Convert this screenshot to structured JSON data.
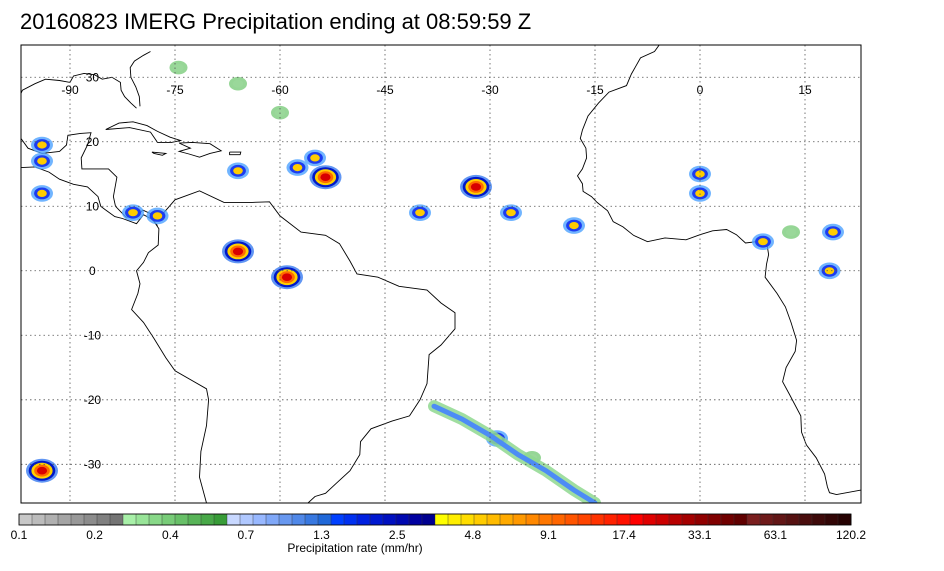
{
  "title": "20160823 IMERG Precipitation ending at 08:59:59 Z",
  "map": {
    "lon_min": -97,
    "lon_max": 23,
    "lat_min": -36,
    "lat_max": 35,
    "lon_labels": [
      "-90",
      "-75",
      "-60",
      "-45",
      "-30",
      "-15",
      "0",
      "15"
    ],
    "lon_values": [
      -90,
      -75,
      -60,
      -45,
      -30,
      -15,
      0,
      15
    ],
    "lat_labels": [
      "30",
      "20",
      "10",
      "0",
      "-10",
      "-20",
      "-30"
    ],
    "lat_values": [
      30,
      20,
      10,
      0,
      -10,
      -20,
      -30
    ],
    "gridline_style": "dotted",
    "precip_cells": [
      {
        "lon": -74.5,
        "lat": 31.5,
        "level": "light"
      },
      {
        "lon": -66,
        "lat": 29,
        "level": "light"
      },
      {
        "lon": -60,
        "lat": 24.5,
        "level": "light"
      },
      {
        "lon": -57.5,
        "lat": 16,
        "level": "moderate"
      },
      {
        "lon": -53.5,
        "lat": 14.5,
        "level": "heavy"
      },
      {
        "lon": -55,
        "lat": 17.5,
        "level": "moderate"
      },
      {
        "lon": -32,
        "lat": 13,
        "level": "heavy"
      },
      {
        "lon": -40,
        "lat": 9,
        "level": "moderate"
      },
      {
        "lon": -27,
        "lat": 9,
        "level": "moderate"
      },
      {
        "lon": -18,
        "lat": 7,
        "level": "moderate"
      },
      {
        "lon": -94,
        "lat": 17,
        "level": "moderate"
      },
      {
        "lon": -94,
        "lat": 12,
        "level": "moderate"
      },
      {
        "lon": -81,
        "lat": 9,
        "level": "moderate"
      },
      {
        "lon": -77.5,
        "lat": 8.5,
        "level": "moderate"
      },
      {
        "lon": -66,
        "lat": 3,
        "level": "heavy"
      },
      {
        "lon": -59,
        "lat": -1,
        "level": "heavy"
      },
      {
        "lon": 0,
        "lat": 15,
        "level": "moderate"
      },
      {
        "lon": 0,
        "lat": 12,
        "level": "moderate"
      },
      {
        "lon": 9,
        "lat": 4.5,
        "level": "moderate"
      },
      {
        "lon": 13,
        "lat": 6,
        "level": "light"
      },
      {
        "lon": 19,
        "lat": 6,
        "level": "moderate"
      },
      {
        "lon": 18.5,
        "lat": 0,
        "level": "moderate"
      },
      {
        "lon": -29,
        "lat": -26,
        "level": "moderate"
      },
      {
        "lon": -24,
        "lat": -29,
        "level": "light"
      },
      {
        "lon": -94,
        "lat": -31,
        "level": "heavy"
      },
      {
        "lon": -66,
        "lat": 15.5,
        "level": "moderate"
      },
      {
        "lon": -94,
        "lat": 19.5,
        "level": "moderate"
      }
    ]
  },
  "colorbar": {
    "label": "Precipitation rate (mm/hr)",
    "tick_labels": [
      "0.1",
      "0.2",
      "0.4",
      "0.7",
      "1.3",
      "2.5",
      "4.8",
      "9.1",
      "17.4",
      "33.1",
      "63.1",
      "120.2"
    ],
    "colors": [
      "#c8c8c8",
      "#bcbcbc",
      "#b0b0b0",
      "#a4a4a4",
      "#989898",
      "#8c8c8c",
      "#808080",
      "#747474",
      "#a8f0a8",
      "#98e498",
      "#88d888",
      "#78cc78",
      "#68c068",
      "#58b458",
      "#48a848",
      "#389c38",
      "#c8d8ff",
      "#b0c8ff",
      "#98b8ff",
      "#80a8f8",
      "#6898f0",
      "#5088e8",
      "#3878e0",
      "#2068d8",
      "#0040ff",
      "#0030f0",
      "#0020e0",
      "#0018d0",
      "#0010c0",
      "#0008b0",
      "#0000a0",
      "#000090",
      "#ffff00",
      "#ffee00",
      "#ffdd00",
      "#ffcc00",
      "#ffbb00",
      "#ffaa00",
      "#ff9900",
      "#ff8800",
      "#ff7700",
      "#ff6600",
      "#ff5500",
      "#ff4400",
      "#ff3300",
      "#ff2200",
      "#ff1100",
      "#ff0000",
      "#e00000",
      "#cc0000",
      "#b80000",
      "#a40000",
      "#900000",
      "#800000",
      "#700000",
      "#600000",
      "#7a1e1e",
      "#6e1a1a",
      "#621616",
      "#561212",
      "#4a0e0e",
      "#3e0a0a",
      "#320606",
      "#260202"
    ]
  }
}
